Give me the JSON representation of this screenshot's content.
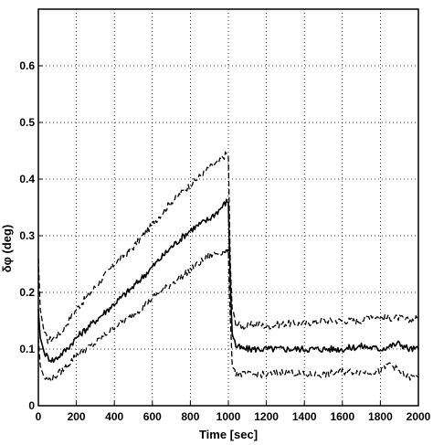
{
  "chart_data": {
    "type": "line",
    "title": "",
    "xlabel": "Time  [sec]",
    "ylabel": "δφ    (deg)",
    "xlim": [
      0,
      2000
    ],
    "ylim": [
      0,
      0.7
    ],
    "xticks": [
      0,
      200,
      400,
      600,
      800,
      1000,
      1200,
      1400,
      1600,
      1800,
      2000
    ],
    "yticks": [
      0,
      0.1,
      0.2,
      0.3,
      0.4,
      0.5,
      0.6
    ],
    "xtick_labels": [
      "0",
      "200",
      "400",
      "600",
      "800",
      "1000",
      "1200",
      "1400",
      "1600",
      "1800",
      "2000"
    ],
    "ytick_labels": [
      "0",
      "0.1",
      "0.2",
      "0.3",
      "0.4",
      "0.5",
      "0.6"
    ],
    "grid": true,
    "legend": "none",
    "series": [
      {
        "style": "dashed-upper",
        "color": "#000000",
        "x": [
          0,
          10,
          30,
          50,
          80,
          120,
          200,
          300,
          400,
          500,
          600,
          700,
          800,
          900,
          950,
          990,
          1000,
          1010,
          1020,
          1040,
          1080,
          1150,
          1200,
          1300,
          1400,
          1500,
          1600,
          1700,
          1750,
          1800,
          1900,
          1950,
          2000
        ],
        "y": [
          0.26,
          0.17,
          0.13,
          0.115,
          0.12,
          0.13,
          0.17,
          0.21,
          0.25,
          0.28,
          0.32,
          0.36,
          0.39,
          0.42,
          0.43,
          0.445,
          0.44,
          0.25,
          0.17,
          0.145,
          0.14,
          0.145,
          0.14,
          0.145,
          0.145,
          0.15,
          0.15,
          0.15,
          0.16,
          0.155,
          0.155,
          0.15,
          0.155
        ]
      },
      {
        "style": "solid-mean",
        "color": "#000000",
        "x": [
          0,
          10,
          30,
          50,
          80,
          100,
          150,
          200,
          300,
          400,
          500,
          600,
          700,
          800,
          900,
          950,
          990,
          1000,
          1010,
          1020,
          1040,
          1080,
          1150,
          1200,
          1300,
          1400,
          1500,
          1600,
          1700,
          1800,
          1900,
          1950,
          2000
        ],
        "y": [
          0.17,
          0.12,
          0.095,
          0.085,
          0.08,
          0.085,
          0.1,
          0.12,
          0.15,
          0.18,
          0.21,
          0.245,
          0.28,
          0.31,
          0.33,
          0.345,
          0.36,
          0.36,
          0.22,
          0.13,
          0.105,
          0.1,
          0.1,
          0.1,
          0.1,
          0.1,
          0.1,
          0.1,
          0.105,
          0.1,
          0.11,
          0.1,
          0.1
        ]
      },
      {
        "style": "dashed-lower",
        "color": "#000000",
        "x": [
          0,
          10,
          30,
          50,
          80,
          100,
          150,
          200,
          300,
          400,
          500,
          600,
          700,
          800,
          900,
          950,
          990,
          1000,
          1010,
          1020,
          1040,
          1080,
          1150,
          1200,
          1300,
          1400,
          1500,
          1600,
          1700,
          1800,
          1850,
          1900,
          1950,
          2000
        ],
        "y": [
          0.12,
          0.07,
          0.05,
          0.045,
          0.05,
          0.055,
          0.07,
          0.09,
          0.11,
          0.14,
          0.16,
          0.19,
          0.215,
          0.24,
          0.265,
          0.27,
          0.275,
          0.27,
          0.15,
          0.075,
          0.058,
          0.055,
          0.055,
          0.055,
          0.06,
          0.055,
          0.055,
          0.06,
          0.06,
          0.06,
          0.075,
          0.06,
          0.05,
          0.05
        ]
      }
    ]
  }
}
